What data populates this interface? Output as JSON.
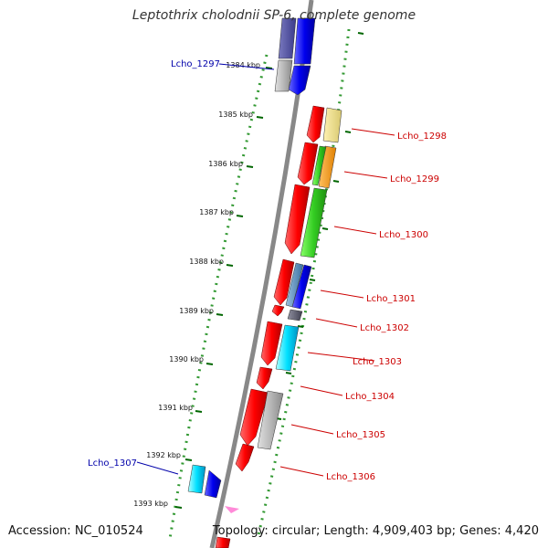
{
  "title": "Leptothrix cholodnii SP-6, complete genome",
  "footer": {
    "accession": "Accession: NC_010524",
    "summary": "Topology: circular; Length: 4,909,403 bp; Genes: 4,420"
  },
  "ticks": [
    "1384 kbp",
    "1385 kbp",
    "1386 kbp",
    "1387 kbp",
    "1388 kbp",
    "1389 kbp",
    "1390 kbp",
    "1391 kbp",
    "1392 kbp",
    "1393 kbp"
  ],
  "gene_labels": [
    {
      "text": "Lcho_1297",
      "color": "#0000aa"
    },
    {
      "text": "Lcho_1298",
      "color": "#cc0000"
    },
    {
      "text": "Lcho_1299",
      "color": "#cc0000"
    },
    {
      "text": "Lcho_1300",
      "color": "#cc0000"
    },
    {
      "text": "Lcho_1301",
      "color": "#cc0000"
    },
    {
      "text": "Lcho_1302",
      "color": "#cc0000"
    },
    {
      "text": "Lcho_1303",
      "color": "#cc0000"
    },
    {
      "text": "Lcho_1304",
      "color": "#cc0000"
    },
    {
      "text": "Lcho_1305",
      "color": "#cc0000"
    },
    {
      "text": "Lcho_1306",
      "color": "#cc0000"
    },
    {
      "text": "Lcho_1307",
      "color": "#0000aa"
    }
  ],
  "colors": {
    "forward_cds": "#ff0000",
    "ring_dots": "#339933",
    "backbone": "#888888",
    "tick_marks": "#006600"
  }
}
